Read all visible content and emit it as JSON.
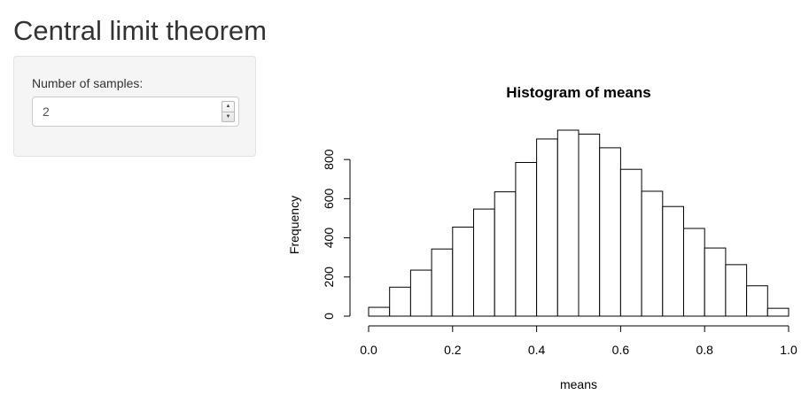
{
  "page": {
    "title": "Central limit theorem"
  },
  "sidebar": {
    "num_samples": {
      "label": "Number of samples:",
      "value": "2",
      "spinner_up_icon": "spinner-up-icon",
      "spinner_down_icon": "spinner-down-icon"
    }
  },
  "chart_data": {
    "type": "bar",
    "title": "Histogram of means",
    "xlabel": "means",
    "ylabel": "Frequency",
    "bin_width": 0.05,
    "bin_starts": [
      0.0,
      0.05,
      0.1,
      0.15,
      0.2,
      0.25,
      0.3,
      0.35,
      0.4,
      0.45,
      0.5,
      0.55,
      0.6,
      0.65,
      0.7,
      0.75,
      0.8,
      0.85,
      0.9,
      0.95
    ],
    "values": [
      45,
      148,
      235,
      343,
      455,
      547,
      635,
      785,
      905,
      950,
      930,
      860,
      750,
      638,
      560,
      448,
      348,
      263,
      155,
      40
    ],
    "xlim": [
      0.0,
      1.0
    ],
    "ylim": [
      0,
      950
    ],
    "x_ticks": [
      0.0,
      0.2,
      0.4,
      0.6,
      0.8,
      1.0
    ],
    "x_tick_labels": [
      "0.0",
      "0.2",
      "0.4",
      "0.6",
      "0.8",
      "1.0"
    ],
    "y_ticks": [
      0,
      200,
      400,
      600,
      800
    ],
    "y_tick_labels": [
      "0",
      "200",
      "400",
      "600",
      "800"
    ],
    "grid": false,
    "colors": {
      "fill": "#ffffff",
      "stroke": "#000000"
    }
  }
}
